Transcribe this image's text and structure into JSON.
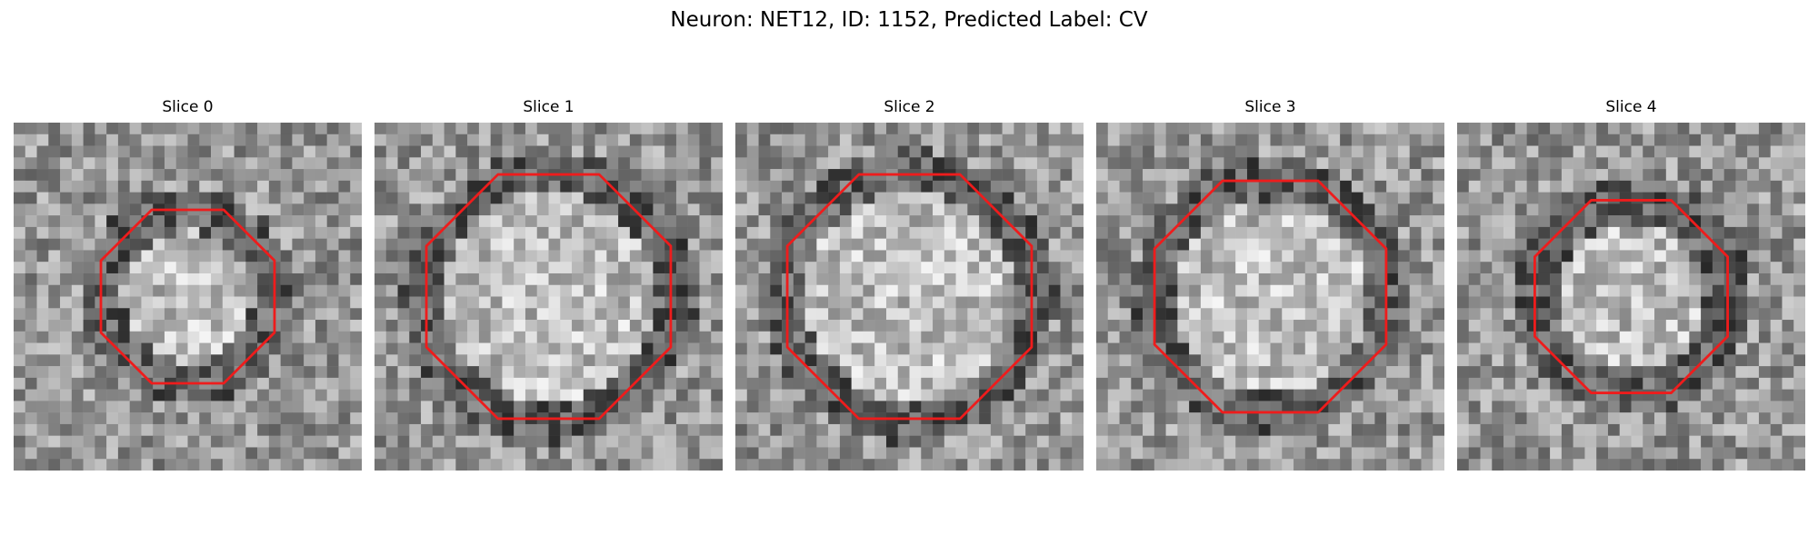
{
  "figure": {
    "title": "Neuron: NET12, ID: 1152, Predicted Label: CV",
    "contour_color": "#ee1c1c"
  },
  "panels": [
    {
      "title": "Slice 0",
      "contour_radius": 0.27,
      "seed": 11
    },
    {
      "title": "Slice 1",
      "contour_radius": 0.38,
      "seed": 23
    },
    {
      "title": "Slice 2",
      "contour_radius": 0.38,
      "seed": 37
    },
    {
      "title": "Slice 3",
      "contour_radius": 0.36,
      "seed": 51
    },
    {
      "title": "Slice 4",
      "contour_radius": 0.3,
      "seed": 67
    }
  ]
}
